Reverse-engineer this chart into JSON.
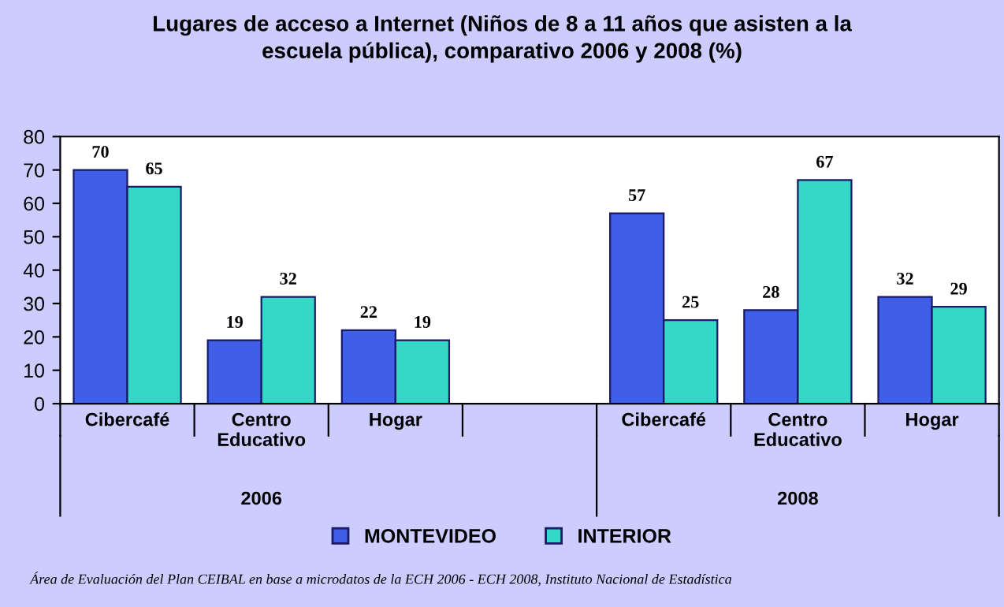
{
  "chart_data": {
    "type": "bar",
    "title": "Lugares de acceso a Internet (Niños de 8 a 11 años que asisten a la\nescuela pública), comparativo 2006 y 2008 (%)",
    "categories": [
      "Cibercafé",
      "Centro\nEducativo",
      "Hogar",
      null,
      "Cibercafé",
      "Centro\nEducativo",
      "Hogar"
    ],
    "series": [
      {
        "name": "MONTEVIDEO",
        "color": "#3f5fe8",
        "values": [
          70,
          19,
          22,
          null,
          57,
          28,
          32
        ]
      },
      {
        "name": "INTERIOR",
        "color": "#33d9c6",
        "values": [
          65,
          32,
          19,
          null,
          25,
          67,
          29
        ]
      }
    ],
    "ylim": [
      0,
      80
    ],
    "yticks": [
      0,
      10,
      20,
      30,
      40,
      50,
      60,
      70,
      80
    ],
    "data_labels": true,
    "grid": false,
    "legend": "bottom",
    "annotations": [
      "2006",
      "2008",
      "Área de Evaluación del Plan CEIBAL en base a microdatos de la ECH 2006 - ECH 2008, Instituto Nacional de Estadística"
    ]
  }
}
